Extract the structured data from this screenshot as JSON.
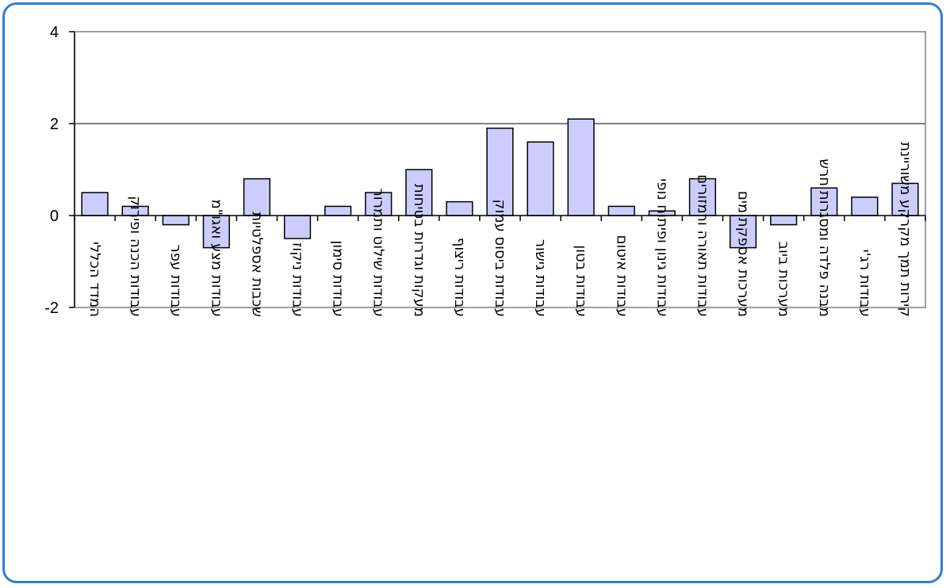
{
  "chart_data": {
    "type": "bar",
    "categories": [
      "המדד הכללי",
      "עבודות הכנה ופירוק",
      "עבודות עפר",
      "עבודות מצע ואגו\"מ",
      "שכבות אספלטיות",
      "עבודות ניקוז",
      "עבודות סימון",
      "עבודות שילוט ותמרור",
      "מעקות וגדרות בטיחות",
      "עבודות ריצוף",
      "עבודות ביסוס עמוק",
      "עבודות גישור",
      "עבודות בטון",
      "עבודות איטום",
      "עבודות גינון ופיתוח נופי",
      "עבודות תאורה ורמזורים",
      "מערכות אספקת מים",
      "מערכות ביוב",
      "מבנה פלדה ומסגרות חרש",
      "עבודות רג'י",
      "קירות תמך מקרקע משוריינת"
    ],
    "values": [
      0.5,
      0.2,
      -0.2,
      -0.7,
      0.8,
      -0.5,
      0.2,
      0.5,
      1.0,
      0.3,
      1.9,
      1.6,
      2.1,
      0.2,
      0.1,
      0.8,
      -0.7,
      -0.2,
      0.6,
      0.4,
      0.7
    ],
    "ylim": [
      -2,
      4
    ],
    "yticks": [
      "4",
      "2",
      "0",
      "-2"
    ],
    "ytick_values": [
      4,
      2,
      0,
      -2
    ],
    "grid": true,
    "colors": {
      "bar_fill": "#ccccff",
      "bar_stroke": "#000000",
      "frame": "#2f7fd0",
      "axis": "#808080"
    }
  }
}
